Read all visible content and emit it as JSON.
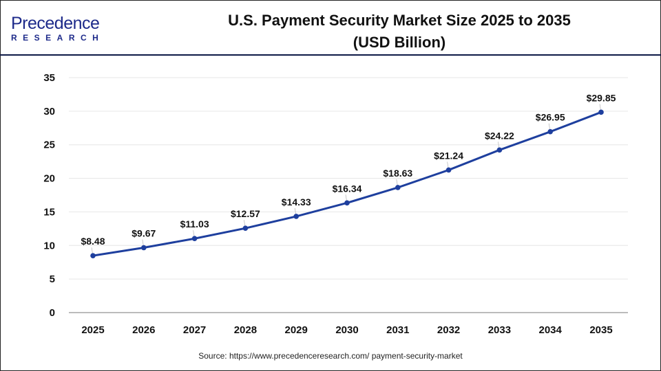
{
  "logo": {
    "name": "Precedence",
    "sub": "RESEARCH"
  },
  "header": {
    "title_line1": "U.S. Payment Security Market Size 2025 to 2035",
    "title_line2": "(USD Billion)"
  },
  "source": "Source: https://www.precedenceresearch.com/ payment-security-market",
  "chart_data": {
    "type": "line",
    "title": "U.S. Payment Security Market Size 2025 to 2035 (USD Billion)",
    "categories": [
      "2025",
      "2026",
      "2027",
      "2028",
      "2029",
      "2030",
      "2031",
      "2032",
      "2033",
      "2034",
      "2035"
    ],
    "values": [
      8.48,
      9.67,
      11.03,
      12.57,
      14.33,
      16.34,
      18.63,
      21.24,
      24.22,
      26.95,
      29.85
    ],
    "data_labels": [
      "$8.48",
      "$9.67",
      "$11.03",
      "$12.57",
      "$14.33",
      "$16.34",
      "$18.63",
      "$21.24",
      "$24.22",
      "$26.95",
      "$29.85"
    ],
    "yticks": [
      "0",
      "5",
      "10",
      "15",
      "20",
      "25",
      "30",
      "35"
    ],
    "ylim": [
      0,
      35
    ],
    "grid": true,
    "line_color": "#1e3f9e",
    "xlabel": "",
    "ylabel": ""
  }
}
